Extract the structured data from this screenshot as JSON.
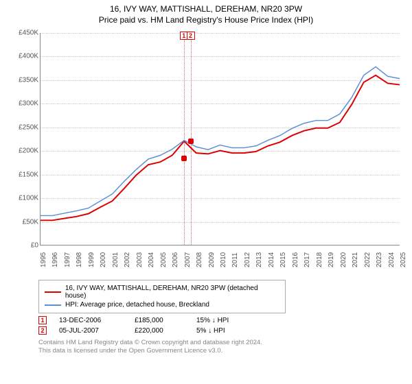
{
  "title": "16, IVY WAY, MATTISHALL, DEREHAM, NR20 3PW",
  "subtitle": "Price paid vs. HM Land Registry's House Price Index (HPI)",
  "chart": {
    "type": "line",
    "background_color": "#ffffff",
    "grid_color": "#cccccc",
    "axis_color": "#888888",
    "label_fontsize": 10,
    "label_color": "#555555",
    "ylim": [
      0,
      450000
    ],
    "ytick_step": 50000,
    "yticks": [
      "£0",
      "£50K",
      "£100K",
      "£150K",
      "£200K",
      "£250K",
      "£300K",
      "£350K",
      "£400K",
      "£450K"
    ],
    "xlim": [
      1995,
      2025
    ],
    "xticks": [
      "1995",
      "1996",
      "1997",
      "1998",
      "1999",
      "2000",
      "2001",
      "2002",
      "2003",
      "2004",
      "2005",
      "2006",
      "2007",
      "2008",
      "2009",
      "2010",
      "2011",
      "2012",
      "2013",
      "2014",
      "2015",
      "2016",
      "2017",
      "2018",
      "2019",
      "2020",
      "2021",
      "2022",
      "2023",
      "2024",
      "2025"
    ],
    "series": [
      {
        "name": "16, IVY WAY, MATTISHALL, DEREHAM, NR20 3PW (detached house)",
        "color": "#dd0000",
        "line_width": 2,
        "points": [
          [
            1995,
            52000
          ],
          [
            1996,
            52000
          ],
          [
            1997,
            56000
          ],
          [
            1998,
            60000
          ],
          [
            1999,
            66000
          ],
          [
            2000,
            80000
          ],
          [
            2001,
            93000
          ],
          [
            2002,
            120000
          ],
          [
            2003,
            148000
          ],
          [
            2004,
            170000
          ],
          [
            2005,
            176000
          ],
          [
            2006,
            190000
          ],
          [
            2007,
            220000
          ],
          [
            2008,
            195000
          ],
          [
            2009,
            193000
          ],
          [
            2010,
            200000
          ],
          [
            2011,
            195000
          ],
          [
            2012,
            195000
          ],
          [
            2013,
            198000
          ],
          [
            2014,
            210000
          ],
          [
            2015,
            218000
          ],
          [
            2016,
            232000
          ],
          [
            2017,
            242000
          ],
          [
            2018,
            248000
          ],
          [
            2019,
            248000
          ],
          [
            2020,
            260000
          ],
          [
            2021,
            298000
          ],
          [
            2022,
            345000
          ],
          [
            2023,
            360000
          ],
          [
            2024,
            343000
          ],
          [
            2025,
            340000
          ]
        ]
      },
      {
        "name": "HPI: Average price, detached house, Breckland",
        "color": "#5b8fd6",
        "line_width": 1.5,
        "points": [
          [
            1995,
            62000
          ],
          [
            1996,
            62000
          ],
          [
            1997,
            67000
          ],
          [
            1998,
            72000
          ],
          [
            1999,
            78000
          ],
          [
            2000,
            93000
          ],
          [
            2001,
            108000
          ],
          [
            2002,
            135000
          ],
          [
            2003,
            160000
          ],
          [
            2004,
            182000
          ],
          [
            2005,
            190000
          ],
          [
            2006,
            203000
          ],
          [
            2007,
            222000
          ],
          [
            2008,
            208000
          ],
          [
            2009,
            202000
          ],
          [
            2010,
            212000
          ],
          [
            2011,
            206000
          ],
          [
            2012,
            206000
          ],
          [
            2013,
            210000
          ],
          [
            2014,
            222000
          ],
          [
            2015,
            232000
          ],
          [
            2016,
            247000
          ],
          [
            2017,
            258000
          ],
          [
            2018,
            264000
          ],
          [
            2019,
            264000
          ],
          [
            2020,
            278000
          ],
          [
            2021,
            313000
          ],
          [
            2022,
            360000
          ],
          [
            2023,
            378000
          ],
          [
            2024,
            358000
          ],
          [
            2025,
            353000
          ]
        ]
      }
    ],
    "markers": [
      {
        "label": "1",
        "year": 2006.95,
        "price": 185000
      },
      {
        "label": "2",
        "year": 2007.51,
        "price": 220000
      }
    ]
  },
  "legend": {
    "items": [
      {
        "color": "#dd0000",
        "label": "16, IVY WAY, MATTISHALL, DEREHAM, NR20 3PW (detached house)"
      },
      {
        "color": "#5b8fd6",
        "label": "HPI: Average price, detached house, Breckland"
      }
    ]
  },
  "sales": [
    {
      "num": "1",
      "date": "13-DEC-2006",
      "price": "£185,000",
      "delta": "15% ↓ HPI"
    },
    {
      "num": "2",
      "date": "05-JUL-2007",
      "price": "£220,000",
      "delta": "5% ↓ HPI"
    }
  ],
  "footnote_line1": "Contains HM Land Registry data © Crown copyright and database right 2024.",
  "footnote_line2": "This data is licensed under the Open Government Licence v3.0.",
  "colors": {
    "pin_border": "#dd0000",
    "pin_text": "#dd0000",
    "footnote": "#888888"
  }
}
